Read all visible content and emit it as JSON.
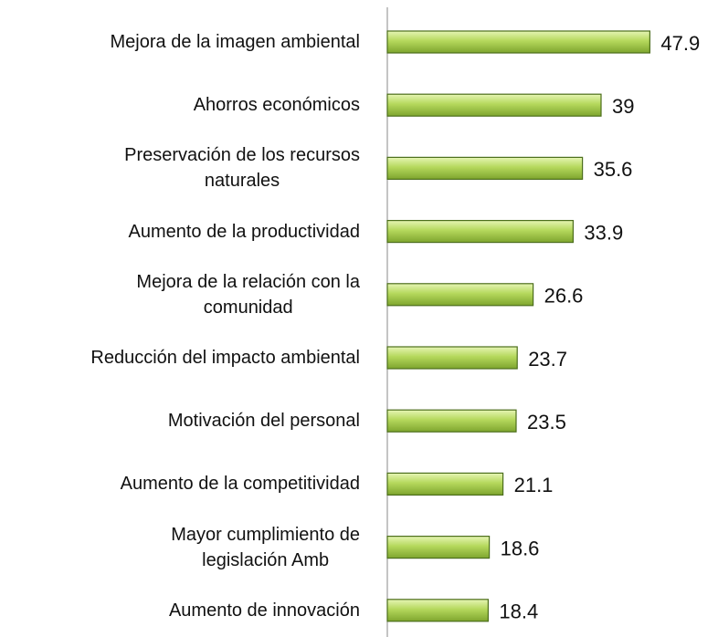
{
  "chart_data": {
    "type": "bar",
    "orientation": "horizontal",
    "categories": [
      "Mejora de la imagen ambiental",
      "Ahorros económicos ",
      "Preservación de los recursos\nnaturales",
      "Aumento de la productividad",
      "Mejora de la relación con la\ncomunidad",
      "Reducción del impacto ambiental ",
      "Motivación del personal",
      "Aumento de la competitividad",
      "Mayor cumplimiento de\nlegislación Amb",
      "Aumento de innovación "
    ],
    "values": [
      47.9,
      39,
      35.6,
      33.9,
      26.6,
      23.7,
      23.5,
      21.1,
      18.6,
      18.4
    ],
    "color": "#9bc240"
  }
}
